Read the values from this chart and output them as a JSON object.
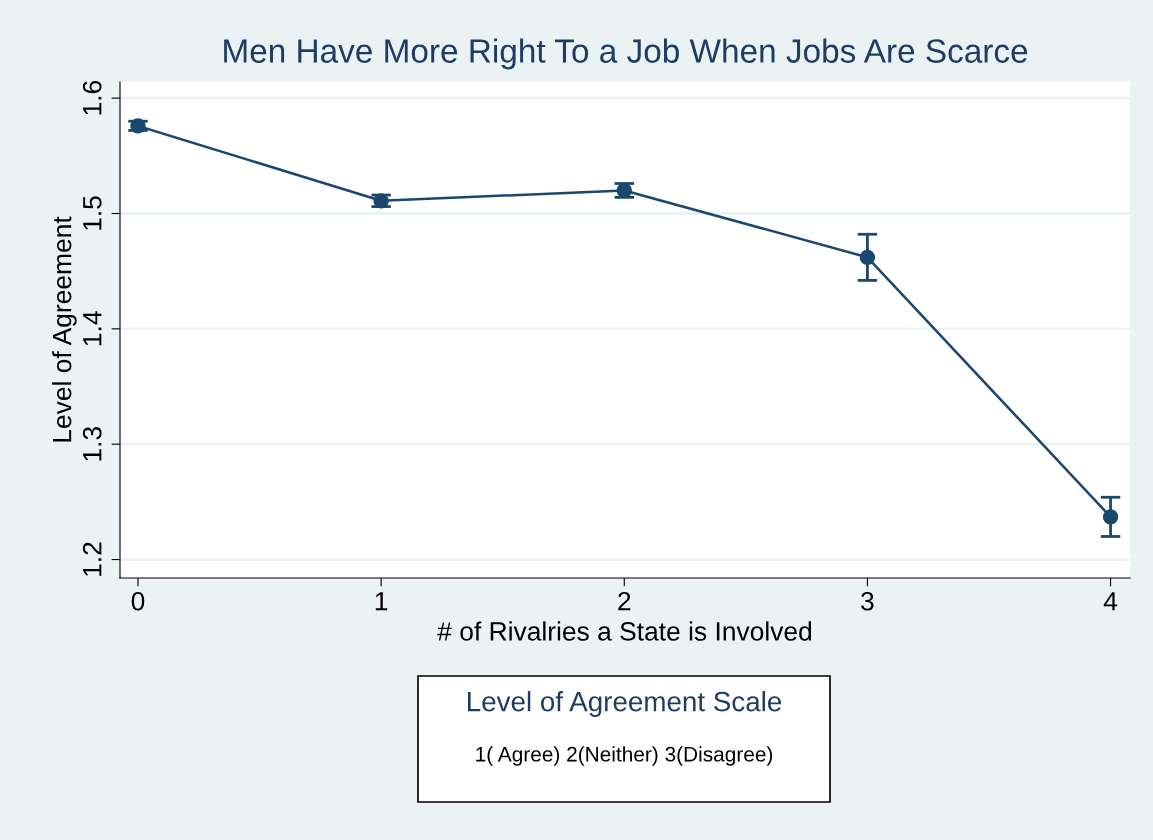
{
  "chart_data": {
    "type": "line",
    "title": "Men Have More Right To a Job When Jobs Are Scarce",
    "xlabel": "# of Rivalries a State is Involved",
    "ylabel": "Level of Agreement",
    "x": [
      0,
      1,
      2,
      3,
      4
    ],
    "series": [
      {
        "color": "#1a476f",
        "values": [
          1.576,
          1.511,
          1.52,
          1.462,
          1.237
        ],
        "errors": [
          0.004,
          0.005,
          0.006,
          0.02,
          0.017
        ]
      }
    ],
    "xlim": [
      -0.074,
      4.08
    ],
    "xticks": [
      0,
      1,
      2,
      3,
      4
    ],
    "ylim": [
      1.184,
      1.614
    ],
    "yticks": [
      1.2,
      1.3,
      1.4,
      1.5,
      1.6
    ],
    "grid": "y",
    "marker": "circle",
    "line_style": "solid",
    "annotations": [
      "Level of Agreement Scale",
      "1( Agree) 2(Neither) 3(Disagree)"
    ]
  }
}
